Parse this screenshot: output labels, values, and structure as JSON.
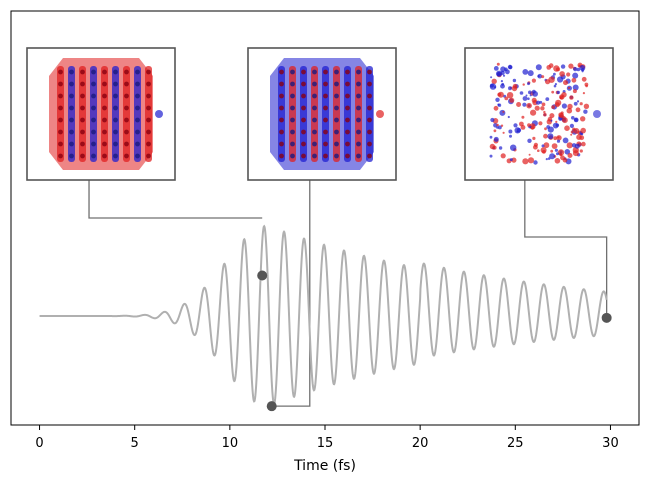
{
  "chart_data": {
    "type": "line",
    "title": "",
    "xlabel": "Time (fs)",
    "ylabel": "",
    "xlim": [
      -1.5,
      31.5
    ],
    "ylim": [
      -1.15,
      1.0
    ],
    "x_ticks": [
      0,
      5,
      10,
      15,
      20,
      25,
      30
    ],
    "x_tick_labels": [
      "0",
      "5",
      "10",
      "15",
      "20",
      "25",
      "30"
    ],
    "y_axis_shown": false,
    "grid": false,
    "series": [
      {
        "color": "#b0b0b0",
        "pulse_center_fs": 12.0,
        "carrier_period_fs": 1.05,
        "peak_amplitude": 0.98,
        "start_fs": 0,
        "end_fs": 29.8,
        "baseline": 0
      }
    ],
    "highlighted_points": [
      {
        "x": 11.7,
        "y": 0.44,
        "color": "#555555"
      },
      {
        "x": 12.2,
        "y": -0.98,
        "color": "#555555"
      },
      {
        "x": 29.8,
        "y": -0.02,
        "color": "#555555"
      }
    ],
    "insets": [
      {
        "x_connect": 2.6,
        "attached_point": 0,
        "description_icon": "density-isosurface-snapshot-1"
      },
      {
        "x_connect": 14.2,
        "attached_point": 1,
        "description_icon": "density-isosurface-snapshot-2"
      },
      {
        "x_connect": 25.5,
        "attached_point": 2,
        "description_icon": "density-isosurface-snapshot-3"
      }
    ],
    "colors": {
      "positive": "#e02020",
      "negative": "#2020d0",
      "connector": "#707070",
      "frame": "#555555"
    }
  }
}
